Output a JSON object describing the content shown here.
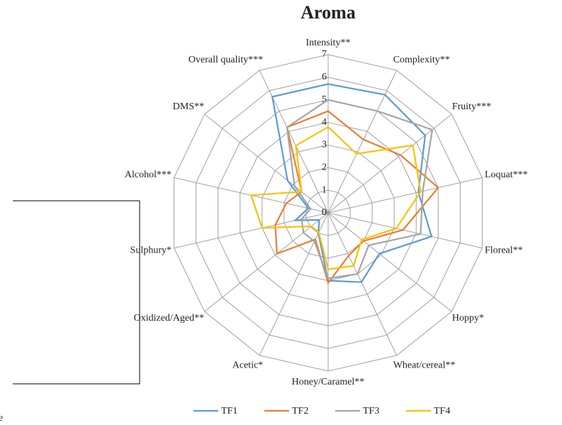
{
  "chart_data": {
    "type": "radar",
    "title": "Aroma",
    "categories": [
      "Intensity**",
      "Complexity**",
      "Fruity***",
      "Loquat***",
      "Floreal**",
      "Hoppy*",
      "Wheat/cereal**",
      "Honey/Caramel**",
      "Acetic*",
      "Oxidized/Aged**",
      "Sulphury*",
      "Alcohol***",
      "DMS**",
      "Overall quality***"
    ],
    "series": [
      {
        "name": "TF1",
        "color": "#5b9bd5",
        "values": [
          5.7,
          5.8,
          5.5,
          4.1,
          4.7,
          2.9,
          3.4,
          3.0,
          1.0,
          0.5,
          1.5,
          0.9,
          2.3,
          5.7
        ]
      },
      {
        "name": "TF2",
        "color": "#ed7d31",
        "values": [
          4.5,
          3.6,
          4.1,
          5.0,
          3.4,
          2.0,
          2.1,
          3.1,
          1.3,
          2.9,
          2.4,
          1.9,
          1.5,
          4.2
        ]
      },
      {
        "name": "TF3",
        "color": "#a5a5a5",
        "values": [
          5.0,
          5.0,
          5.9,
          4.3,
          4.2,
          2.3,
          3.0,
          2.9,
          1.4,
          1.4,
          1.2,
          0.8,
          1.9,
          4.2
        ]
      },
      {
        "name": "TF4",
        "color": "#ffc000",
        "values": [
          3.8,
          2.9,
          4.8,
          4.2,
          3.1,
          1.9,
          2.6,
          2.5,
          0.95,
          0.95,
          3.0,
          3.5,
          1.5,
          3.3
        ]
      }
    ],
    "ylim": [
      0,
      7
    ],
    "yticks": [
      0,
      1,
      2,
      3,
      4,
      5,
      6,
      7
    ],
    "grid": true,
    "legend": "bottom"
  },
  "fragment": "e"
}
